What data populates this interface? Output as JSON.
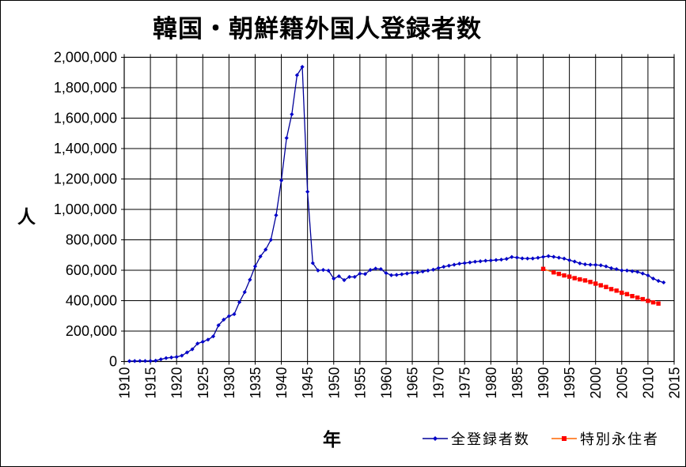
{
  "title": "韓国・朝鮮籍外国人登録者数",
  "chart_data": {
    "type": "line",
    "title": "韓国・朝鮮籍外国人登録者数",
    "xlabel": "年",
    "ylabel": "人",
    "ylim": [
      0,
      2000000
    ],
    "y_tick_step": 200000,
    "x_ticks": [
      1910,
      1915,
      1920,
      1925,
      1930,
      1935,
      1940,
      1945,
      1950,
      1955,
      1960,
      1965,
      1970,
      1975,
      1980,
      1985,
      1990,
      1995,
      2000,
      2005,
      2010,
      2015
    ],
    "grid": true,
    "grid_color": "#000000",
    "background": "#ffffff",
    "legend_position": "bottom-right",
    "series": [
      {
        "name": "全登録者数",
        "line_color": "#000099",
        "marker": "diamond",
        "marker_color": "#0000cc",
        "start_year": 1911,
        "values": [
          2527,
          3171,
          3635,
          3542,
          3917,
          5624,
          14502,
          22411,
          26605,
          30189,
          38651,
          59722,
          80415,
          118152,
          129870,
          143798,
          165286,
          238102,
          275206,
          298091,
          311247,
          390543,
          456217,
          537695,
          625678,
          690501,
          735689,
          799878,
          961591,
          1190444,
          1469230,
          1625054,
          1882456,
          1936843,
          1116000,
          647006,
          598507,
          601772,
          597561,
          544903,
          560700,
          535065,
          556239,
          556173,
          577682,
          575287,
          601769,
          611085,
          607533,
          581257,
          567452,
          569360,
          573537,
          578545,
          583537,
          585278,
          591345,
          598076,
          603712,
          614202,
          622690,
          629809,
          636346,
          643096,
          647156,
          651348,
          656233,
          659025,
          662561,
          664536,
          667325,
          669854,
          674581,
          687135,
          683313,
          677959,
          676982,
          677140,
          681838,
          687940,
          693050,
          688144,
          682276,
          676793,
          666376,
          657159,
          645373,
          638828,
          636548,
          635269,
          632405,
          625422,
          613791,
          607419,
          598687,
          598219,
          593489,
          589239,
          578495,
          565989,
          545401,
          530048,
          519740
        ]
      },
      {
        "name": "特別永住者",
        "line_color": "#ff6600",
        "marker": "square",
        "marker_color": "#ff0000",
        "years": [
          1990,
          1992,
          1993,
          1994,
          1995,
          1996,
          1997,
          1998,
          1999,
          2000,
          2001,
          2002,
          2003,
          2004,
          2005,
          2006,
          2007,
          2008,
          2009,
          2010,
          2011,
          2012
        ],
        "values": [
          609000,
          586000,
          576000,
          566000,
          558000,
          548000,
          540000,
          533000,
          523000,
          512000,
          501000,
          490000,
          476000,
          466000,
          452000,
          443000,
          430000,
          420000,
          410000,
          399000,
          389000,
          381000
        ]
      }
    ]
  }
}
